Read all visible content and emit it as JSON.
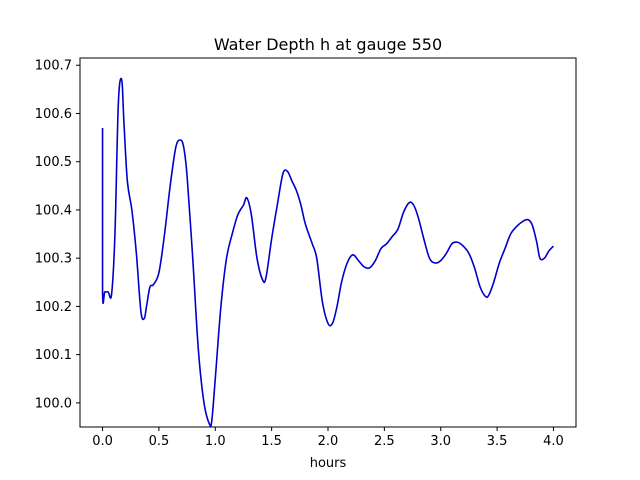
{
  "chart_data": {
    "type": "line",
    "title": "Water Depth h at gauge 550",
    "xlabel": "hours",
    "ylabel": "",
    "xlim": [
      -0.2,
      4.2
    ],
    "ylim": [
      99.95,
      100.715
    ],
    "xticks": [
      0.0,
      0.5,
      1.0,
      1.5,
      2.0,
      2.5,
      3.0,
      3.5,
      4.0
    ],
    "xtick_labels": [
      "0.0",
      "0.5",
      "1.0",
      "1.5",
      "2.0",
      "2.5",
      "3.0",
      "3.5",
      "4.0"
    ],
    "yticks": [
      100.0,
      100.1,
      100.2,
      100.3,
      100.4,
      100.5,
      100.6,
      100.7
    ],
    "ytick_labels": [
      "100.0",
      "100.1",
      "100.2",
      "100.3",
      "100.4",
      "100.5",
      "100.6",
      "100.7"
    ],
    "grid": false,
    "legend": "none",
    "series": [
      {
        "color": "#0000cc",
        "x": [
          0.0,
          0.0,
          0.02,
          0.05,
          0.08,
          0.11,
          0.14,
          0.17,
          0.19,
          0.22,
          0.26,
          0.3,
          0.34,
          0.37,
          0.39,
          0.42,
          0.45,
          0.5,
          0.55,
          0.6,
          0.65,
          0.69,
          0.72,
          0.75,
          0.8,
          0.85,
          0.9,
          0.95,
          0.97,
          1.0,
          1.05,
          1.1,
          1.15,
          1.2,
          1.25,
          1.28,
          1.32,
          1.37,
          1.42,
          1.45,
          1.5,
          1.55,
          1.6,
          1.64,
          1.68,
          1.72,
          1.76,
          1.8,
          1.86,
          1.9,
          1.95,
          2.0,
          2.04,
          2.08,
          2.12,
          2.17,
          2.22,
          2.27,
          2.32,
          2.37,
          2.42,
          2.47,
          2.52,
          2.57,
          2.62,
          2.67,
          2.72,
          2.76,
          2.8,
          2.85,
          2.9,
          2.95,
          3.0,
          3.05,
          3.1,
          3.15,
          3.2,
          3.25,
          3.3,
          3.35,
          3.4,
          3.43,
          3.47,
          3.52,
          3.57,
          3.62,
          3.67,
          3.72,
          3.77,
          3.81,
          3.85,
          3.88,
          3.92,
          3.96,
          4.0
        ],
        "y": [
          100.57,
          100.232,
          100.23,
          100.23,
          100.225,
          100.35,
          100.62,
          100.67,
          100.58,
          100.46,
          100.4,
          100.31,
          100.19,
          100.175,
          100.2,
          100.24,
          100.245,
          100.27,
          100.35,
          100.45,
          100.53,
          100.545,
          100.53,
          100.47,
          100.3,
          100.11,
          100.0,
          99.955,
          99.965,
          100.05,
          100.2,
          100.3,
          100.35,
          100.39,
          100.41,
          100.425,
          100.39,
          100.3,
          100.255,
          100.26,
          100.34,
          100.41,
          100.475,
          100.48,
          100.46,
          100.44,
          100.41,
          100.37,
          100.33,
          100.3,
          100.21,
          100.165,
          100.165,
          100.2,
          100.25,
          100.29,
          100.307,
          100.295,
          100.282,
          100.28,
          100.295,
          100.32,
          100.33,
          100.345,
          100.36,
          100.395,
          100.415,
          100.41,
          100.385,
          100.34,
          100.3,
          100.29,
          100.295,
          100.31,
          100.33,
          100.333,
          100.325,
          100.31,
          100.28,
          100.24,
          100.22,
          100.225,
          100.25,
          100.29,
          100.32,
          100.35,
          100.365,
          100.375,
          100.38,
          100.37,
          100.335,
          100.3,
          100.3,
          100.315,
          100.325
        ]
      }
    ]
  }
}
